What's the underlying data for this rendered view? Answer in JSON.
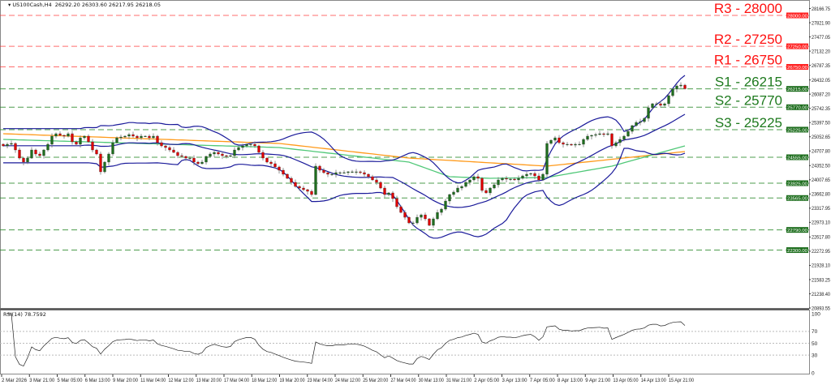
{
  "header": {
    "symbol": "US100Cash,H4",
    "ohlc": "26292.20 26303.60 26217.95 26218.05"
  },
  "rsi_panel": {
    "label": "RSI(14) 78.7592",
    "levels": [
      70,
      50,
      30
    ],
    "scale": [
      "100",
      "70",
      "50",
      "30",
      "0"
    ]
  },
  "colors": {
    "bull": "#1e6e1e",
    "bear": "#e00000",
    "bands": "#1a1a9a",
    "ma_orange": "#ff9a1a",
    "ma_green": "#50c878",
    "resistance": "#ff3030",
    "support": "#2e8b2e"
  },
  "chart_data": {
    "type": "candlestick",
    "title": "US100Cash,H4",
    "price_axis_labels": [
      "28166.75",
      "27821.90",
      "27477.05",
      "27132.20",
      "26787.35",
      "26432.05",
      "26087.20",
      "25742.35",
      "25397.50",
      "25052.65",
      "24707.80",
      "24352.50",
      "24007.65",
      "23662.80",
      "23317.95",
      "22973.10",
      "22617.80",
      "22272.95",
      "21928.10",
      "21583.25",
      "21238.40",
      "20893.55"
    ],
    "ylim": [
      20893.55,
      28166.75
    ],
    "time_axis_labels": [
      "2 Mar 2026",
      "3 Mar 21:00",
      "5 Mar 05:00",
      "6 Mar 13:00",
      "9 Mar 20:00",
      "11 Mar 04:00",
      "12 Mar 12:00",
      "13 Mar 20:00",
      "17 Mar 04:00",
      "18 Mar 12:00",
      "19 Mar 20:00",
      "23 Mar 04:00",
      "24 Mar 12:00",
      "25 Mar 20:00",
      "27 Mar 04:00",
      "30 Mar 13:00",
      "31 Mar 21:00",
      "2 Apr 05:00",
      "3 Apr 13:00",
      "7 Apr 05:00",
      "8 Apr 13:00",
      "9 Apr 21:00",
      "13 Apr 05:00",
      "14 Apr 13:00",
      "15 Apr 21:00"
    ],
    "closes": [
      24831,
      24870,
      24890,
      24732,
      24535,
      24437,
      24535,
      24732,
      24634,
      24594,
      24732,
      24870,
      25067,
      25126,
      25087,
      25067,
      25126,
      24929,
      24870,
      25027,
      25067,
      24929,
      24732,
      24634,
      24201,
      24437,
      24634,
      24909,
      25027,
      25047,
      25067,
      25106,
      25067,
      25027,
      25067,
      25067,
      25027,
      25067,
      24909,
      24831,
      24791,
      24732,
      24673,
      24594,
      24575,
      24535,
      24535,
      24437,
      24398,
      24437,
      24575,
      24634,
      24673,
      24634,
      24594,
      24575,
      24594,
      24732,
      24791,
      24831,
      24870,
      24870,
      24831,
      24673,
      24535,
      24437,
      24398,
      24319,
      24240,
      24142,
      24043,
      23945,
      23846,
      23807,
      23768,
      23728,
      23649,
      24339,
      24240,
      24181,
      24142,
      24142,
      24181,
      24181,
      24181,
      24201,
      24201,
      24201,
      24181,
      24142,
      24083,
      24004,
      23945,
      23807,
      23649,
      23689,
      23551,
      23354,
      23215,
      23097,
      22960,
      22960,
      23097,
      23156,
      23059,
      22901,
      23059,
      23215,
      23295,
      23492,
      23649,
      23709,
      23807,
      23846,
      23945,
      24004,
      24083,
      24043,
      23748,
      23689,
      23807,
      23886,
      24004,
      24043,
      24024,
      24024,
      24004,
      24043,
      24102,
      24142,
      24161,
      24102,
      24004,
      24142,
      24890,
      24968,
      25027,
      24909,
      24870,
      24870,
      24850,
      24870,
      24870,
      24988,
      25067,
      25087,
      25106,
      25126,
      25106,
      25126,
      24831,
      24909,
      24988,
      25067,
      25184,
      25323,
      25401,
      25421,
      25500,
      25756,
      25854,
      25854,
      25815,
      25854,
      26051,
      26209,
      26287,
      26307,
      26218
    ],
    "ma_orange": {
      "bars": [
        0,
        68,
        100,
        134,
        168
      ],
      "values": [
        25126,
        24890,
        24535,
        24339,
        24693
      ]
    },
    "ma_green": {
      "bars": [
        0,
        68,
        100,
        110,
        120,
        134,
        150,
        168
      ],
      "values": [
        24988,
        24791,
        24437,
        24083,
        24043,
        24063,
        24339,
        24831
      ]
    },
    "bollinger": {
      "period": 20,
      "deviations": 2
    },
    "rsi_period": 14,
    "levels": [
      {
        "label": "R3 - 28000",
        "price": 28000,
        "tag": "28000.00",
        "kind": "resistance"
      },
      {
        "label": "R2 - 27250",
        "price": 27250,
        "tag": "27250.00",
        "kind": "resistance"
      },
      {
        "label": "R1 - 26750",
        "price": 26750,
        "tag": "26750.00",
        "kind": "resistance"
      },
      {
        "label": "S1 - 26215",
        "price": 26215,
        "tag": "26215.00",
        "kind": "support"
      },
      {
        "label": "S2 - 25770",
        "price": 25770,
        "tag": "25770.00",
        "kind": "support"
      },
      {
        "label": "S3 - 25225",
        "price": 25225,
        "tag": "25225.00",
        "kind": "support"
      },
      {
        "label": "",
        "price": 24555,
        "tag": "24555.00",
        "kind": "support"
      },
      {
        "label": "",
        "price": 23925,
        "tag": "23925.00",
        "kind": "support"
      },
      {
        "label": "",
        "price": 23565,
        "tag": "23565.00",
        "kind": "support"
      },
      {
        "label": "",
        "price": 22790,
        "tag": "22790.00",
        "kind": "support"
      },
      {
        "label": "",
        "price": 22300,
        "tag": "22300.00",
        "kind": "support"
      }
    ]
  }
}
